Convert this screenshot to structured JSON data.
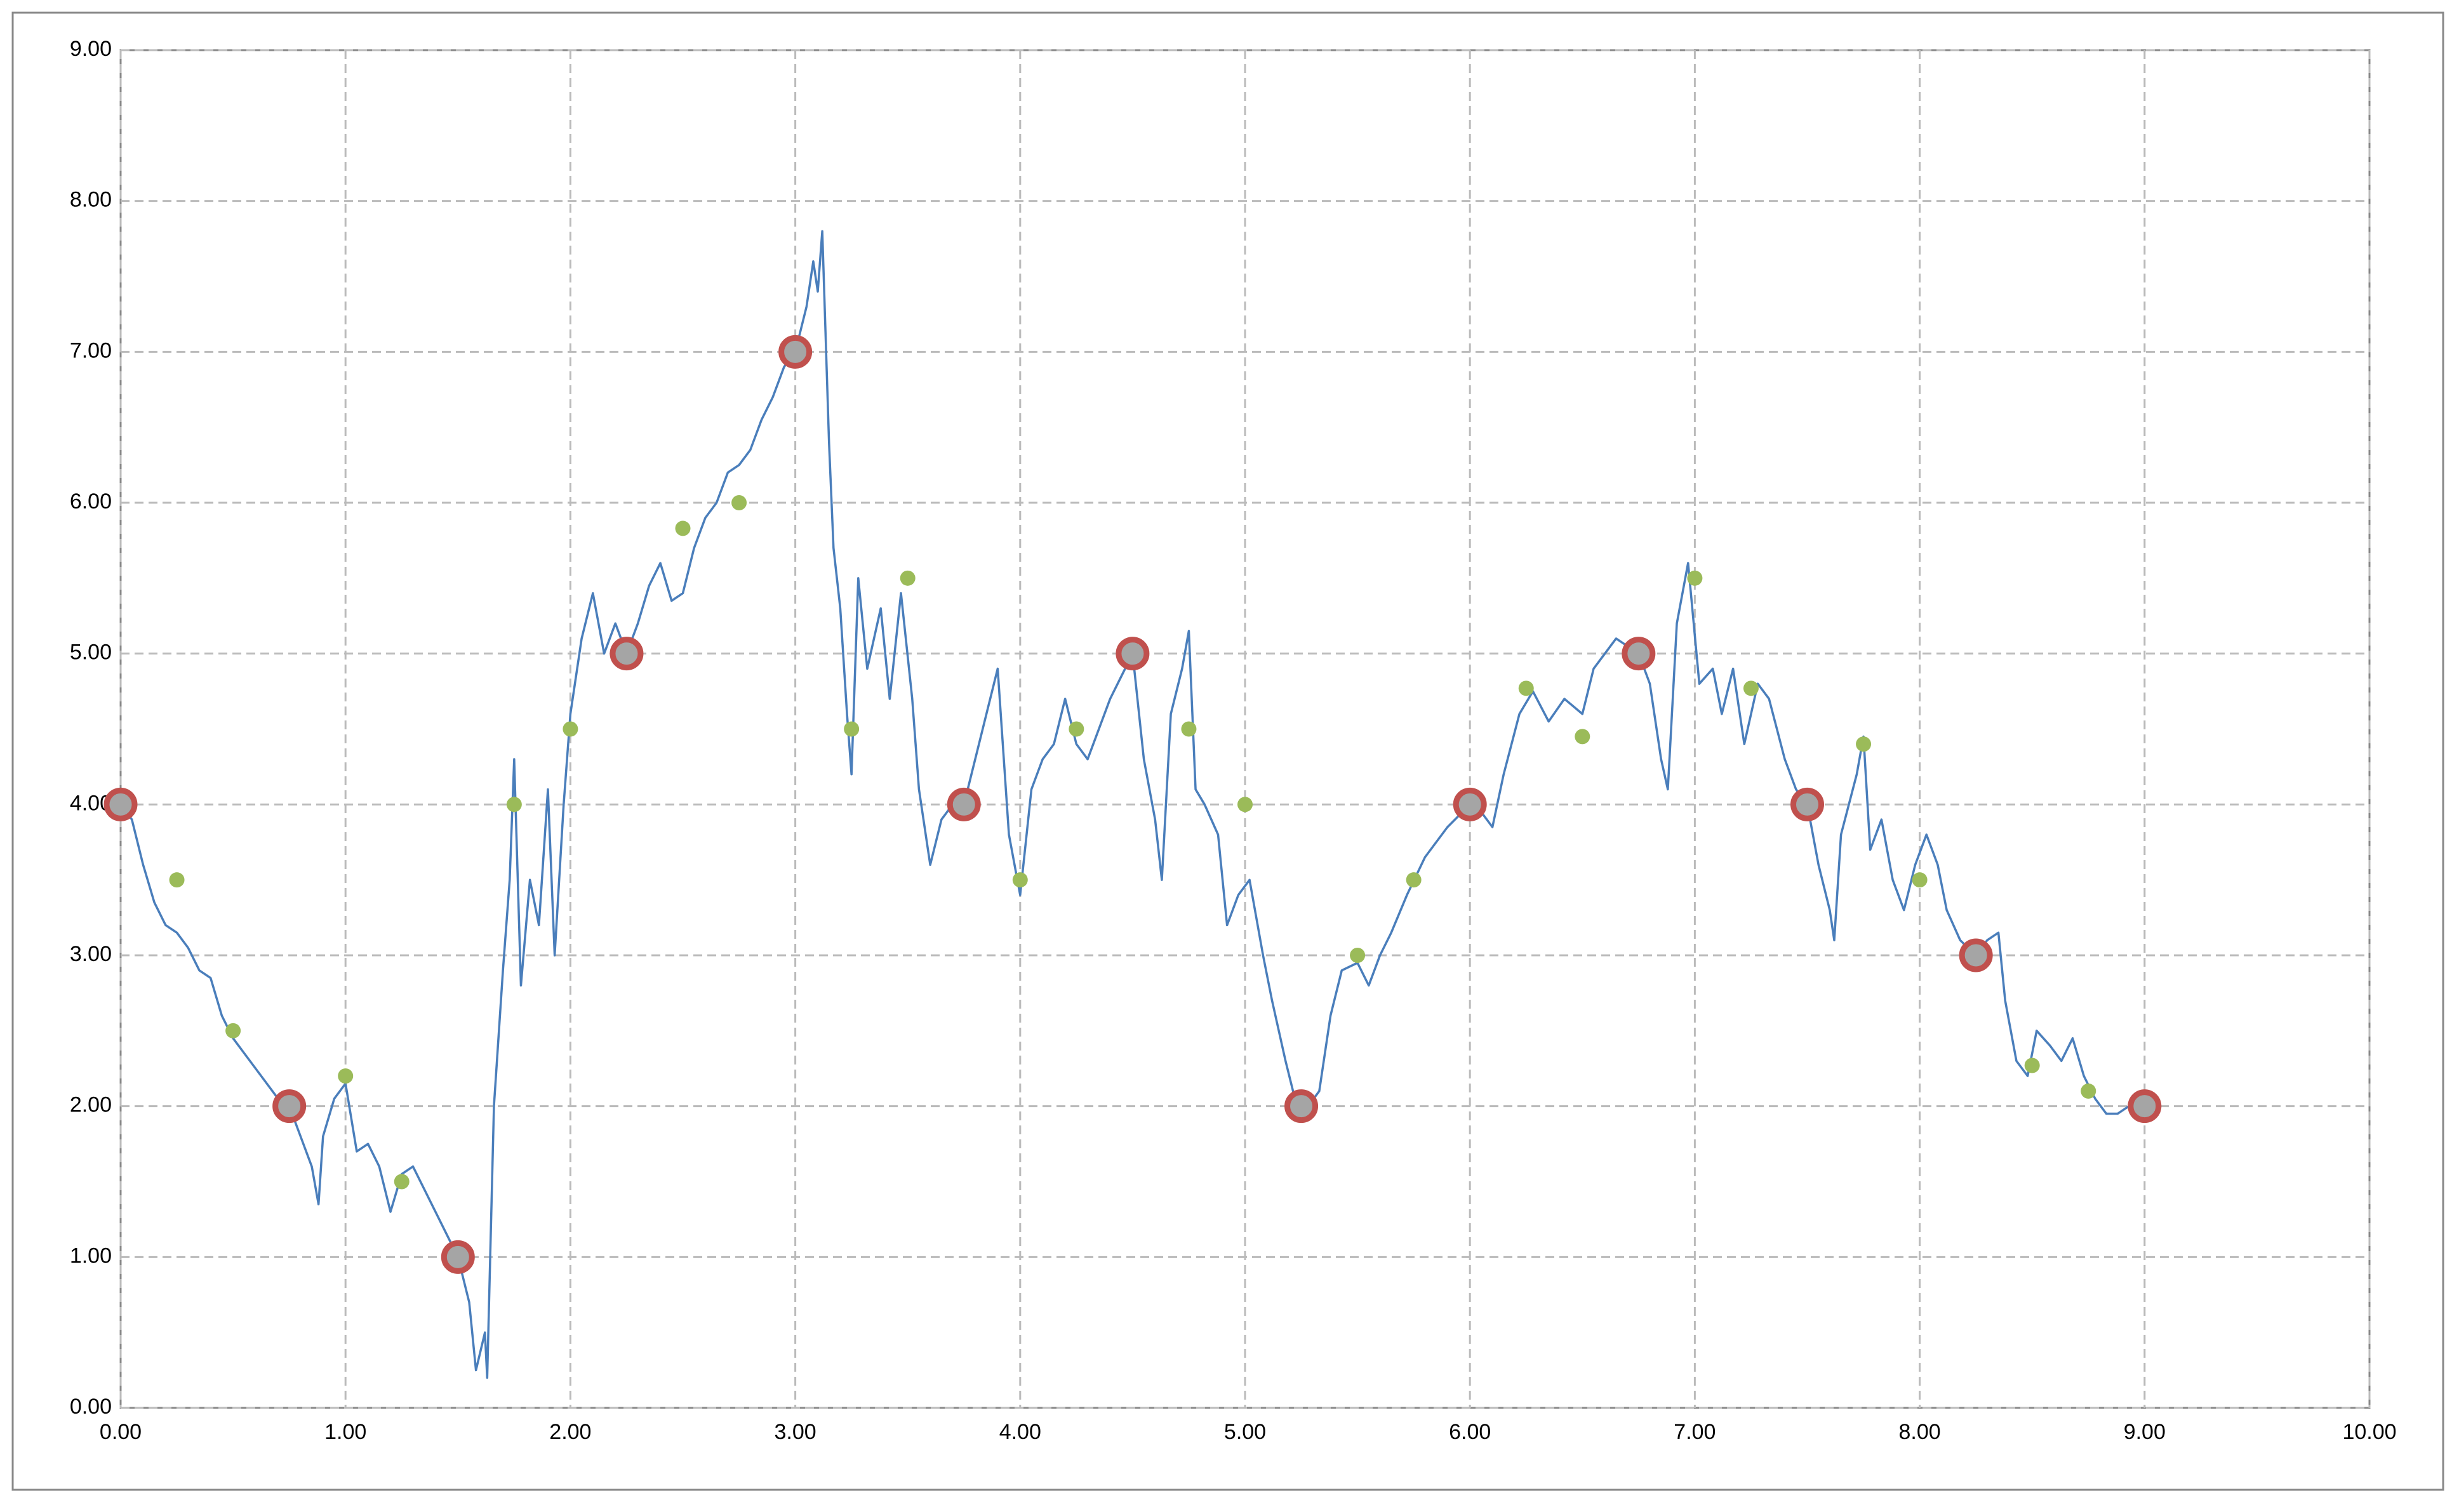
{
  "chart_data": {
    "type": "scatter",
    "xlim": [
      0,
      10
    ],
    "ylim": [
      0,
      9
    ],
    "xticks": [
      {
        "value": 0,
        "label": "0.00"
      },
      {
        "value": 1,
        "label": "1.00"
      },
      {
        "value": 2,
        "label": "2.00"
      },
      {
        "value": 3,
        "label": "3.00"
      },
      {
        "value": 4,
        "label": "4.00"
      },
      {
        "value": 5,
        "label": "5.00"
      },
      {
        "value": 6,
        "label": "6.00"
      },
      {
        "value": 7,
        "label": "7.00"
      },
      {
        "value": 8,
        "label": "8.00"
      },
      {
        "value": 9,
        "label": "9.00"
      },
      {
        "value": 10,
        "label": "10.00"
      }
    ],
    "yticks": [
      {
        "value": 0,
        "label": "0.00"
      },
      {
        "value": 1,
        "label": "1.00"
      },
      {
        "value": 2,
        "label": "2.00"
      },
      {
        "value": 3,
        "label": "3.00"
      },
      {
        "value": 4,
        "label": "4.00"
      },
      {
        "value": 5,
        "label": "5.00"
      },
      {
        "value": 6,
        "label": "6.00"
      },
      {
        "value": 7,
        "label": "7.00"
      },
      {
        "value": 8,
        "label": "8.00"
      },
      {
        "value": 9,
        "label": "9.00"
      }
    ],
    "grid": true,
    "series": [
      {
        "color": "#4a7ebb",
        "mode": "line",
        "x": [
          0,
          0.05,
          0.1,
          0.15,
          0.2,
          0.25,
          0.3,
          0.35,
          0.4,
          0.45,
          0.5,
          0.55,
          0.6,
          0.65,
          0.7,
          0.75,
          0.8,
          0.85,
          0.88,
          0.9,
          0.95,
          1.0,
          1.05,
          1.1,
          1.15,
          1.2,
          1.25,
          1.3,
          1.35,
          1.4,
          1.45,
          1.5,
          1.55,
          1.58,
          1.62,
          1.63,
          1.66,
          1.7,
          1.73,
          1.75,
          1.78,
          1.82,
          1.86,
          1.9,
          1.93,
          1.97,
          2.0,
          2.05,
          2.1,
          2.15,
          2.2,
          2.25,
          2.3,
          2.35,
          2.4,
          2.45,
          2.5,
          2.55,
          2.6,
          2.65,
          2.7,
          2.75,
          2.8,
          2.85,
          2.9,
          2.95,
          3.0,
          3.05,
          3.08,
          3.1,
          3.12,
          3.15,
          3.17,
          3.2,
          3.23,
          3.25,
          3.28,
          3.32,
          3.38,
          3.42,
          3.47,
          3.52,
          3.55,
          3.6,
          3.65,
          3.7,
          3.75,
          3.8,
          3.85,
          3.9,
          3.95,
          4.0,
          4.05,
          4.1,
          4.15,
          4.2,
          4.25,
          4.3,
          4.35,
          4.4,
          4.45,
          4.5,
          4.55,
          4.6,
          4.63,
          4.67,
          4.72,
          4.75,
          4.78,
          4.82,
          4.88,
          4.92,
          4.97,
          5.02,
          5.08,
          5.12,
          5.18,
          5.23,
          5.28,
          5.33,
          5.38,
          5.43,
          5.5,
          5.55,
          5.6,
          5.65,
          5.72,
          5.8,
          5.9,
          6.0,
          6.05,
          6.1,
          6.15,
          6.22,
          6.28,
          6.35,
          6.42,
          6.5,
          6.55,
          6.6,
          6.65,
          6.7,
          6.75,
          6.8,
          6.85,
          6.88,
          6.92,
          6.97,
          7.02,
          7.08,
          7.12,
          7.17,
          7.22,
          7.28,
          7.33,
          7.4,
          7.45,
          7.5,
          7.55,
          7.6,
          7.62,
          7.65,
          7.72,
          7.75,
          7.78,
          7.83,
          7.88,
          7.93,
          7.98,
          8.03,
          8.08,
          8.12,
          8.18,
          8.25,
          8.3,
          8.35,
          8.38,
          8.43,
          8.48,
          8.52,
          8.58,
          8.63,
          8.68,
          8.73,
          8.78,
          8.83,
          8.88,
          8.93,
          9.0
        ],
        "values": [
          4.0,
          3.9,
          3.6,
          3.35,
          3.2,
          3.15,
          3.05,
          2.9,
          2.85,
          2.6,
          2.45,
          2.35,
          2.25,
          2.15,
          2.05,
          2.0,
          1.8,
          1.6,
          1.35,
          1.8,
          2.05,
          2.15,
          1.7,
          1.75,
          1.6,
          1.3,
          1.55,
          1.6,
          1.45,
          1.3,
          1.15,
          1.0,
          0.7,
          0.25,
          0.5,
          0.2,
          2.0,
          2.9,
          3.5,
          4.3,
          2.8,
          3.5,
          3.2,
          4.1,
          3.0,
          4.0,
          4.6,
          5.1,
          5.4,
          5.0,
          5.2,
          5.0,
          5.2,
          5.45,
          5.6,
          5.35,
          5.4,
          5.7,
          5.9,
          6.0,
          6.2,
          6.25,
          6.35,
          6.55,
          6.7,
          6.9,
          7.0,
          7.3,
          7.6,
          7.4,
          7.8,
          6.4,
          5.7,
          5.3,
          4.6,
          4.2,
          5.5,
          4.9,
          5.3,
          4.7,
          5.4,
          4.7,
          4.1,
          3.6,
          3.9,
          4.0,
          4.0,
          4.3,
          4.6,
          4.9,
          3.8,
          3.4,
          4.1,
          4.3,
          4.4,
          4.7,
          4.4,
          4.3,
          4.5,
          4.7,
          4.85,
          5.0,
          4.3,
          3.9,
          3.5,
          4.6,
          4.9,
          5.15,
          4.1,
          4.0,
          3.8,
          3.2,
          3.4,
          3.5,
          3.0,
          2.7,
          2.3,
          2.0,
          2.0,
          2.1,
          2.6,
          2.9,
          2.95,
          2.8,
          3.0,
          3.15,
          3.4,
          3.65,
          3.85,
          4.0,
          3.95,
          3.85,
          4.2,
          4.6,
          4.75,
          4.55,
          4.7,
          4.6,
          4.9,
          5.0,
          5.1,
          5.05,
          5.0,
          4.8,
          4.3,
          4.1,
          5.2,
          5.6,
          4.8,
          4.9,
          4.6,
          4.9,
          4.4,
          4.8,
          4.7,
          4.3,
          4.1,
          4.0,
          3.6,
          3.3,
          3.1,
          3.8,
          4.2,
          4.45,
          3.7,
          3.9,
          3.5,
          3.3,
          3.6,
          3.8,
          3.6,
          3.3,
          3.1,
          3.0,
          3.1,
          3.15,
          2.7,
          2.3,
          2.2,
          2.5,
          2.4,
          2.3,
          2.45,
          2.2,
          2.05,
          1.95,
          1.95,
          2.0,
          2.0
        ]
      },
      {
        "color": "#9bbb59",
        "mode": "dot",
        "x": [
          0.25,
          0.5,
          1.0,
          1.25,
          1.75,
          2.0,
          2.5,
          2.75,
          3.25,
          3.5,
          4.0,
          4.25,
          4.75,
          5.0,
          5.5,
          5.75,
          6.25,
          6.5,
          7.0,
          7.25,
          7.75,
          8.0,
          8.5,
          8.75
        ],
        "values": [
          3.5,
          2.5,
          2.2,
          1.5,
          4.0,
          4.5,
          5.83,
          6.0,
          4.5,
          5.5,
          3.5,
          4.5,
          4.5,
          4.0,
          3.0,
          3.5,
          4.77,
          4.45,
          5.5,
          4.77,
          4.4,
          3.5,
          2.27,
          2.1
        ]
      },
      {
        "color": "#c0504d",
        "mode": "ring",
        "x": [
          0,
          0.75,
          1.5,
          2.25,
          3.0,
          3.75,
          4.5,
          5.25,
          6.0,
          6.75,
          7.5,
          8.25,
          9.0
        ],
        "values": [
          4,
          2,
          1,
          5,
          7,
          4,
          5,
          2,
          4,
          5,
          4,
          3,
          2
        ]
      }
    ]
  }
}
